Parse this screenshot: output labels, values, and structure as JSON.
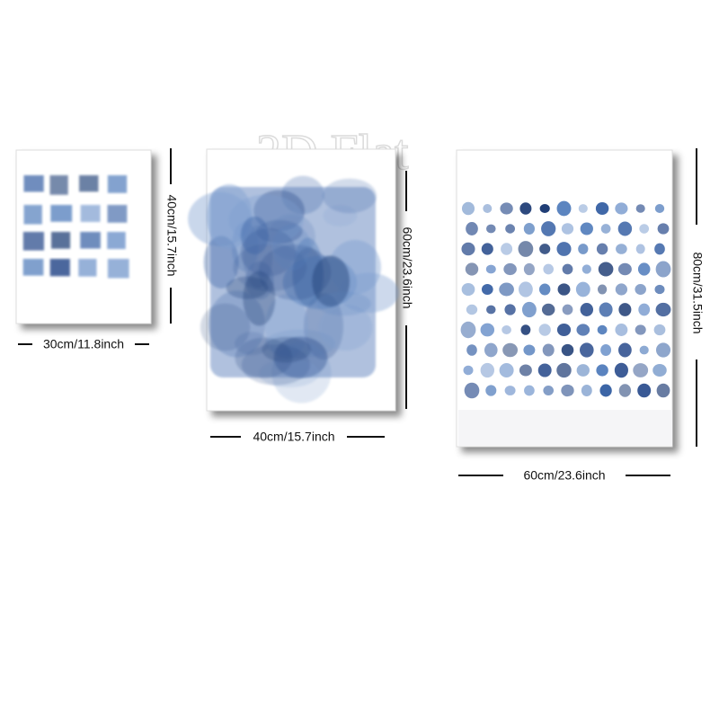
{
  "watermark": "2D Flat",
  "panels": [
    {
      "width_label": "30cm/11.8inch",
      "height_label": "40cm/15.7inch"
    },
    {
      "width_label": "40cm/15.7inch",
      "height_label": "60cm/23.6inch"
    },
    {
      "width_label": "60cm/23.6inch",
      "height_label": "80cm/31.5inch"
    }
  ]
}
